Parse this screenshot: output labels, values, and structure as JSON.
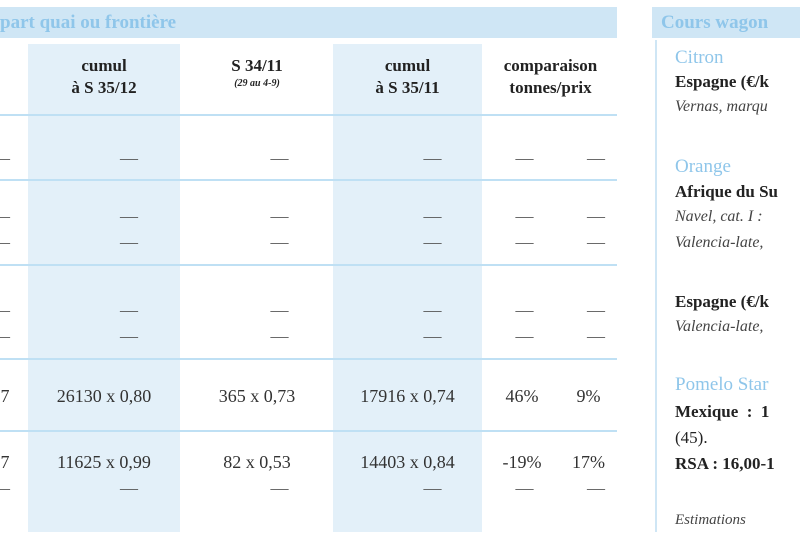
{
  "left_header": "part quai ou frontière",
  "right_header": "Cours wagon",
  "columns": [
    {
      "line1": "cumul",
      "line2": "à S 35/12",
      "sub": ""
    },
    {
      "line1": "S 34/11",
      "line2": "",
      "sub": "(29 au 4-9)"
    },
    {
      "line1": "cumul",
      "line2": "à S 35/11",
      "sub": ""
    },
    {
      "line1": "comparaison",
      "line2": "tonnes/prix",
      "sub": ""
    }
  ],
  "dash": "—",
  "rows_data": [
    {
      "c0": "7",
      "c1": "26130 x 0,80",
      "c2": "365 x 0,73",
      "c3": "17916 x 0,74",
      "c4": "46%",
      "c5": "9%"
    },
    {
      "c0": "7",
      "c1": "11625 x 0,99",
      "c2": "82 x 0,53",
      "c3": "14403 x 0,84",
      "c4": "-19%",
      "c5": "17%"
    }
  ],
  "sidebar": {
    "citron_title": "Citron",
    "citron_line1": "Espagne (€/k",
    "citron_line2": "Vernas, marqu",
    "orange_title": "Orange",
    "orange_line1": "Afrique du Su",
    "orange_line2": "Navel, cat. I :",
    "orange_line3": "Valencia-late,",
    "orange_line4": "Espagne (€/k",
    "orange_line5": "Valencia-late,",
    "pomelo_title": "Pomelo Star",
    "pomelo_line1": "Mexique  :  1",
    "pomelo_line2": "(45).",
    "pomelo_line3": "RSA : 16,00-1",
    "footer": "Estimations"
  }
}
